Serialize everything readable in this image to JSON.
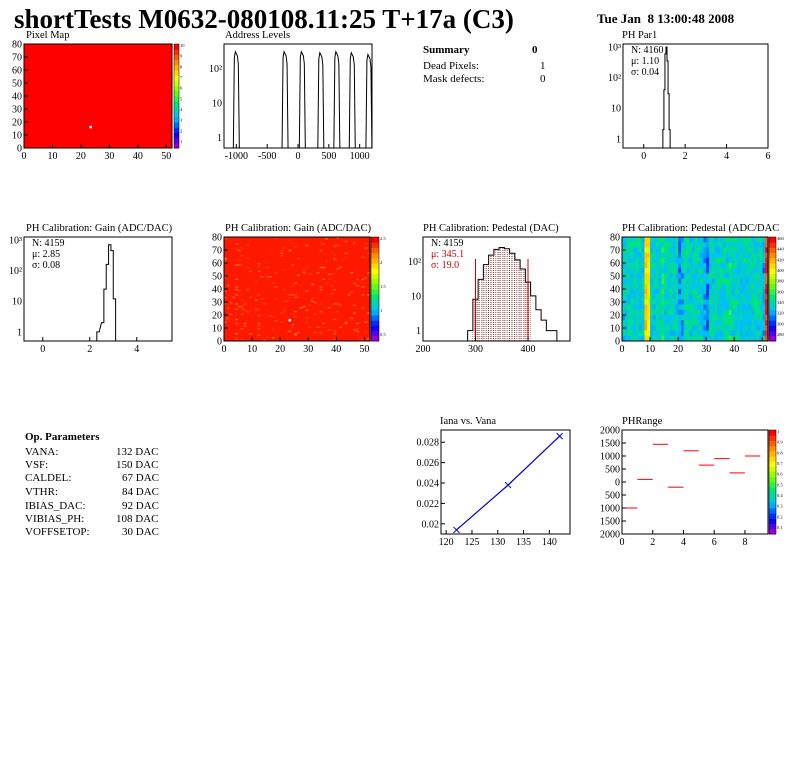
{
  "header": {
    "title": "shortTests M0632-080108.11:25 T+17a (C3)",
    "datetime": "Tue Jan  8 13:00:48 2008"
  },
  "colors": {
    "red": "#ff0000",
    "hist_line": "#000000",
    "fit_line": "#0000cc",
    "pedestal_fill": "#8b0000",
    "marker_red": "#cc0000"
  },
  "panels": {
    "pixel_map": {
      "title": "Pixel Map",
      "yticks": [
        "80",
        "70",
        "60",
        "50",
        "40",
        "30",
        "20",
        "10",
        "0"
      ],
      "xticks": [
        "0",
        "10",
        "20",
        "30",
        "40",
        "50"
      ],
      "zticks": [
        "10",
        "9",
        "8",
        "7",
        "6",
        "5",
        "4",
        "3",
        "2",
        "1"
      ]
    },
    "address_levels": {
      "title": "Address Levels",
      "yticks": [
        "10²",
        "10",
        "1"
      ],
      "xticks": [
        "-1000",
        "-500",
        "0",
        "500",
        "1000"
      ]
    },
    "summary": {
      "title": "Summary",
      "title_value": "0",
      "rows": [
        {
          "label": "Dead Pixels:",
          "value": "1"
        },
        {
          "label": "Mask defects:",
          "value": "0"
        }
      ]
    },
    "ph_par1": {
      "title": "PH Par1",
      "stats": [
        "N: 4160",
        "μ: 1.10",
        "σ: 0.04"
      ],
      "yticks": [
        "10³",
        "10²",
        "10",
        "1"
      ],
      "xticks": [
        "0",
        "2",
        "4",
        "6"
      ]
    },
    "gain_hist": {
      "title": "PH Calibration: Gain (ADC/DAC)",
      "stats": [
        "N: 4159",
        "μ: 2.85",
        "σ: 0.08"
      ],
      "yticks": [
        "10³",
        "10²",
        "10",
        "1"
      ],
      "xticks": [
        "0",
        "2",
        "4"
      ]
    },
    "gain_map": {
      "title": "PH Calibration: Gain (ADC/DAC)",
      "yticks": [
        "80",
        "70",
        "60",
        "50",
        "40",
        "30",
        "20",
        "10",
        "0"
      ],
      "xticks": [
        "0",
        "10",
        "20",
        "30",
        "40",
        "50"
      ],
      "zticks": [
        "2.5",
        "2",
        "1.5",
        "1",
        "0.5"
      ]
    },
    "pedestal_hist": {
      "title": "PH Calibration: Pedestal (DAC)",
      "stats": [
        "N: 4159",
        "μ: 345.1",
        "σ: 19.0"
      ],
      "yticks": [
        "10²",
        "10",
        "1"
      ],
      "xticks": [
        "200",
        "300",
        "400"
      ]
    },
    "pedestal_map": {
      "title": "PH Calibration: Pedestal (ADC/DAC",
      "yticks": [
        "80",
        "70",
        "60",
        "50",
        "40",
        "30",
        "20",
        "10",
        "0"
      ],
      "xticks": [
        "0",
        "10",
        "20",
        "30",
        "40",
        "50"
      ],
      "zticks": [
        "460",
        "440",
        "420",
        "400",
        "380",
        "360",
        "340",
        "320",
        "300",
        "280"
      ]
    },
    "op_params": {
      "title": "Op. Parameters",
      "rows": [
        {
          "name": "VANA:",
          "value": "132 DAC"
        },
        {
          "name": "VSF:",
          "value": "150 DAC"
        },
        {
          "name": "CALDEL:",
          "value": "67 DAC"
        },
        {
          "name": "VTHR:",
          "value": "84 DAC"
        },
        {
          "name": "IBIAS_DAC:",
          "value": "92 DAC"
        },
        {
          "name": "VIBIAS_PH:",
          "value": "108 DAC"
        },
        {
          "name": "VOFFSETOP:",
          "value": "30 DAC"
        }
      ]
    },
    "iana_vana": {
      "title": "Iana vs. Vana",
      "yticks": [
        "0.028",
        "0.026",
        "0.024",
        "0.022",
        "0.02"
      ],
      "xticks": [
        "120",
        "125",
        "130",
        "135",
        "140"
      ]
    },
    "ph_range": {
      "title": "PHRange",
      "yticks": [
        "2000",
        "1500",
        "1000",
        "500",
        "0",
        "-500",
        "-1000",
        "-1500",
        "-2000"
      ],
      "ytick_labels_shown": [
        "2000",
        "1500",
        "1000",
        "500",
        "0",
        "500",
        "1000",
        "1500",
        "2000"
      ],
      "xticks": [
        "0",
        "2",
        "4",
        "6",
        "8"
      ],
      "zticks": [
        "1",
        "0.9",
        "0.8",
        "0.7",
        "0.6",
        "0.5",
        "0.4",
        "0.3",
        "0.2",
        "0.1"
      ]
    }
  },
  "chart_data": [
    {
      "type": "heatmap",
      "title": "Pixel Map",
      "xlim": [
        0,
        52
      ],
      "ylim": [
        0,
        80
      ],
      "zlim": [
        0,
        10
      ],
      "uniform_value": 10,
      "dead_pixels": [
        {
          "x": 23,
          "y": 17
        }
      ]
    },
    {
      "type": "bar",
      "title": "Address Levels",
      "log_y": true,
      "xlim": [
        -1200,
        1200
      ],
      "peaks": [
        {
          "x": -1000,
          "height": 300
        },
        {
          "x": -210,
          "height": 300
        },
        {
          "x": 70,
          "height": 300
        },
        {
          "x": 370,
          "height": 280
        },
        {
          "x": 630,
          "height": 300
        },
        {
          "x": 880,
          "height": 280
        },
        {
          "x": 1150,
          "height": 250
        }
      ]
    },
    {
      "type": "bar",
      "title": "PH Par1",
      "log_y": true,
      "xlim": [
        -1,
        6
      ],
      "x": [
        0.95,
        1.0,
        1.05,
        1.1,
        1.15,
        1.2,
        1.25
      ],
      "values": [
        2,
        40,
        600,
        1000,
        350,
        30,
        2
      ]
    },
    {
      "type": "bar",
      "title": "PH Calibration: Gain (ADC/DAC)",
      "log_y": true,
      "xlim": [
        -0.8,
        5.5
      ],
      "x": [
        2.35,
        2.55,
        2.65,
        2.75,
        2.85,
        2.95,
        3.05
      ],
      "values": [
        1,
        2,
        25,
        160,
        700,
        450,
        12
      ]
    },
    {
      "type": "heatmap",
      "title": "PH Calibration: Gain (ADC/DAC)",
      "xlim": [
        0,
        52
      ],
      "ylim": [
        0,
        80
      ],
      "zlim": [
        0,
        2.8
      ],
      "typical_value": 2.85,
      "low_pixels": [
        {
          "x": 23,
          "y": 17
        }
      ]
    },
    {
      "type": "bar",
      "title": "PH Calibration: Pedestal (DAC)",
      "log_y": true,
      "xlim": [
        200,
        480
      ],
      "x": [
        290,
        300,
        310,
        320,
        330,
        340,
        350,
        360,
        370,
        380,
        390,
        400,
        410,
        420,
        430,
        440,
        450
      ],
      "values": [
        1,
        8,
        30,
        80,
        150,
        220,
        250,
        230,
        170,
        110,
        60,
        25,
        10,
        4,
        2,
        1,
        1
      ],
      "fit_range": [
        300,
        400
      ]
    },
    {
      "type": "heatmap",
      "title": "PH Calibration: Pedestal (ADC/DAC",
      "xlim": [
        0,
        52
      ],
      "ylim": [
        0,
        80
      ],
      "zlim": [
        280,
        470
      ],
      "columns": [
        {
          "x": 0,
          "value": 340
        },
        {
          "x": 8,
          "value": 420
        },
        {
          "x": 9,
          "value": 410
        },
        {
          "x": 14,
          "value": 360
        },
        {
          "x": 20,
          "value": 325
        },
        {
          "x": 21,
          "value": 335
        },
        {
          "x": 29,
          "value": 330
        },
        {
          "x": 30,
          "value": 325
        },
        {
          "x": 38,
          "value": 355
        },
        {
          "x": 44,
          "value": 345
        },
        {
          "x": 50,
          "value": 330
        },
        {
          "x": 51,
          "value": 460
        }
      ]
    },
    {
      "type": "line",
      "title": "Iana vs. Vana",
      "x": [
        122,
        132,
        142
      ],
      "values": [
        0.0194,
        0.0238,
        0.0286
      ],
      "xlim": [
        119,
        144
      ],
      "ylim": [
        0.019,
        0.0292
      ]
    },
    {
      "type": "scatter",
      "title": "PHRange",
      "xlim": [
        0,
        9.5
      ],
      "ylim": [
        -2000,
        2000
      ],
      "x": [
        0.5,
        1.5,
        2.5,
        3.5,
        4.5,
        5.5,
        6.5,
        7.5,
        8.5
      ],
      "values": [
        -1000,
        100,
        1450,
        -200,
        1200,
        650,
        900,
        350,
        1000
      ]
    }
  ]
}
